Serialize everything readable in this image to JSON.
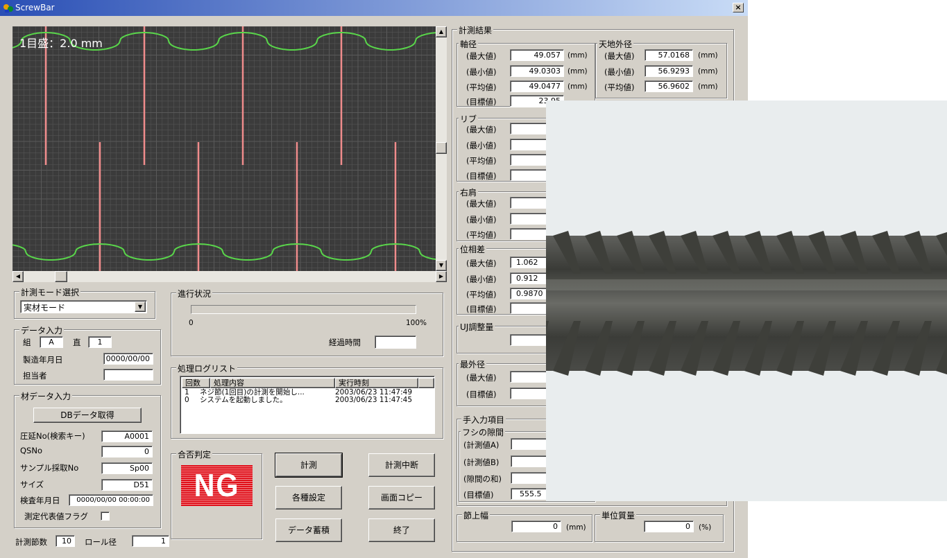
{
  "window": {
    "title": "ScrewBar",
    "close_label": "×"
  },
  "chart": {
    "scale_label": "1目盛：2.0 mm"
  },
  "mode": {
    "title": "計測モード選択",
    "selected": "実材モード"
  },
  "data_input": {
    "title": "データ入力",
    "kumi_label": "組",
    "kumi_value": "A",
    "choku_label": "直",
    "choku_value": "1",
    "date_label": "製造年月日",
    "date_value": "0000/00/00",
    "person_label": "担当者",
    "person_value": ""
  },
  "material": {
    "title": "材データ入力",
    "db_button": "DBデータ取得",
    "rolling_label": "圧延No(検索キー)",
    "rolling_value": "A0001",
    "qsno_label": "QSNo",
    "qsno_value": "0",
    "sample_label": "サンプル採取No",
    "sample_value": "Sp00",
    "size_label": "サイズ",
    "size_value": "D51",
    "inspect_label": "検査年月日",
    "inspect_value": "0000/00/00 00:00:00",
    "flag_label": "測定代表値フラグ"
  },
  "bottom": {
    "nodes_label": "計測節数",
    "nodes_value": "10",
    "roll_label": "ロール径",
    "roll_value": "1"
  },
  "progress": {
    "title": "進行状況",
    "min": "0",
    "max": "100%",
    "elapsed_label": "経過時間",
    "elapsed_value": "",
    "fraction": 0
  },
  "log": {
    "title": "処理ログリスト",
    "headers": [
      "回数",
      "処理内容",
      "実行時刻"
    ],
    "rows": [
      {
        "count": "1",
        "content": "ネジ節(1回目)の計測を開始し...",
        "time": "2003/06/23 11:47:49"
      },
      {
        "count": "0",
        "content": "システムを起動しました。",
        "time": "2003/06/23 11:47:45"
      }
    ]
  },
  "judge": {
    "title": "合否判定",
    "result": "NG",
    "color": "#e0101a"
  },
  "buttons": {
    "measure": "計測",
    "stop": "計測中断",
    "settings": "各種設定",
    "copy": "画面コピー",
    "store": "データ蓄積",
    "exit": "終了"
  },
  "results": {
    "title": "計測結果",
    "shaft": {
      "title": "軸径",
      "max_label": "(最大値)",
      "max": "49.057",
      "min_label": "(最小値)",
      "min": "49.0303",
      "avg_label": "(平均値)",
      "avg": "49.0477",
      "target_label": "(目標値)",
      "target": "23.95",
      "unit": "(mm)"
    },
    "outer": {
      "title": "天地外径",
      "max_label": "(最大値)",
      "max": "57.0168",
      "min_label": "(最小値)",
      "min": "56.9293",
      "avg_label": "(平均値)",
      "avg": "56.9602",
      "unit": "(mm)"
    },
    "rib": {
      "title": "リブ",
      "max_label": "(最大値)",
      "min_label": "(最小値)",
      "avg_label": "(平均値)",
      "target_label": "(目標値)"
    },
    "shoulder": {
      "title": "右肩",
      "max_label": "(最大値)",
      "min_label": "(最小値)",
      "avg_label": "(平均値)"
    },
    "phase": {
      "title": "位相差",
      "max_label": "(最大値)",
      "max": "1.062",
      "min_label": "(最小値)",
      "min": "0.912",
      "avg_label": "(平均値)",
      "avg": "0.9870",
      "target_label": "(目標値)"
    },
    "uj": {
      "title": "UJ調整量"
    },
    "outermost": {
      "title": "最外径",
      "max_label": "(最大値)",
      "target_label": "(目標値)"
    },
    "manual": {
      "title": "手入力項目",
      "gap_title": "フシの隙間",
      "a_label": "(計測値A)",
      "b_label": "(計測値B)",
      "sum_label": "(隙間の和)",
      "target_label": "(目標値)",
      "target_value": "555.5"
    },
    "node_width": {
      "title": "節上幅",
      "value": "0",
      "unit": "(mm)"
    },
    "unit_mass": {
      "title": "単位質量",
      "value": "0",
      "unit": "(%)"
    }
  }
}
